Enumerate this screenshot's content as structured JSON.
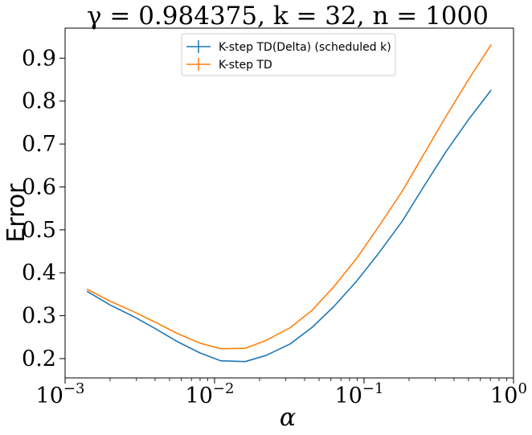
{
  "chart_data": {
    "type": "line",
    "title": "γ = 0.984375, k = 32, n = 1000",
    "xlabel": "α",
    "ylabel": "Error",
    "xscale": "log",
    "xlim": [
      0.001,
      1
    ],
    "ylim": [
      0.155,
      0.97
    ],
    "x_ticks": [
      {
        "value": 0.001,
        "base": "10",
        "exp": "−3"
      },
      {
        "value": 0.01,
        "base": "10",
        "exp": "−2"
      },
      {
        "value": 0.1,
        "base": "10",
        "exp": "−1"
      },
      {
        "value": 1,
        "base": "10",
        "exp": "0"
      }
    ],
    "y_ticks": [
      0.2,
      0.3,
      0.4,
      0.5,
      0.6,
      0.7,
      0.8,
      0.9
    ],
    "y_tick_labels": [
      "0.2",
      "0.3",
      "0.4",
      "0.5",
      "0.6",
      "0.7",
      "0.8",
      "0.9"
    ],
    "legend_position": "top-center",
    "grid": false,
    "x": [
      0.0014,
      0.002,
      0.0028,
      0.004,
      0.0056,
      0.008,
      0.011,
      0.016,
      0.022,
      0.032,
      0.045,
      0.063,
      0.089,
      0.125,
      0.18,
      0.25,
      0.35,
      0.5,
      0.71
    ],
    "series": [
      {
        "name": "K-step TD(Delta) (scheduled k)",
        "color": "#1f77b4",
        "values": [
          0.357,
          0.325,
          0.3,
          0.27,
          0.24,
          0.213,
          0.195,
          0.193,
          0.207,
          0.234,
          0.273,
          0.322,
          0.38,
          0.445,
          0.52,
          0.6,
          0.68,
          0.757,
          0.826
        ]
      },
      {
        "name": "K-step TD",
        "color": "#ff7f0e",
        "values": [
          0.362,
          0.334,
          0.311,
          0.285,
          0.259,
          0.236,
          0.223,
          0.224,
          0.242,
          0.272,
          0.313,
          0.368,
          0.433,
          0.507,
          0.59,
          0.675,
          0.762,
          0.85,
          0.932
        ]
      }
    ]
  }
}
